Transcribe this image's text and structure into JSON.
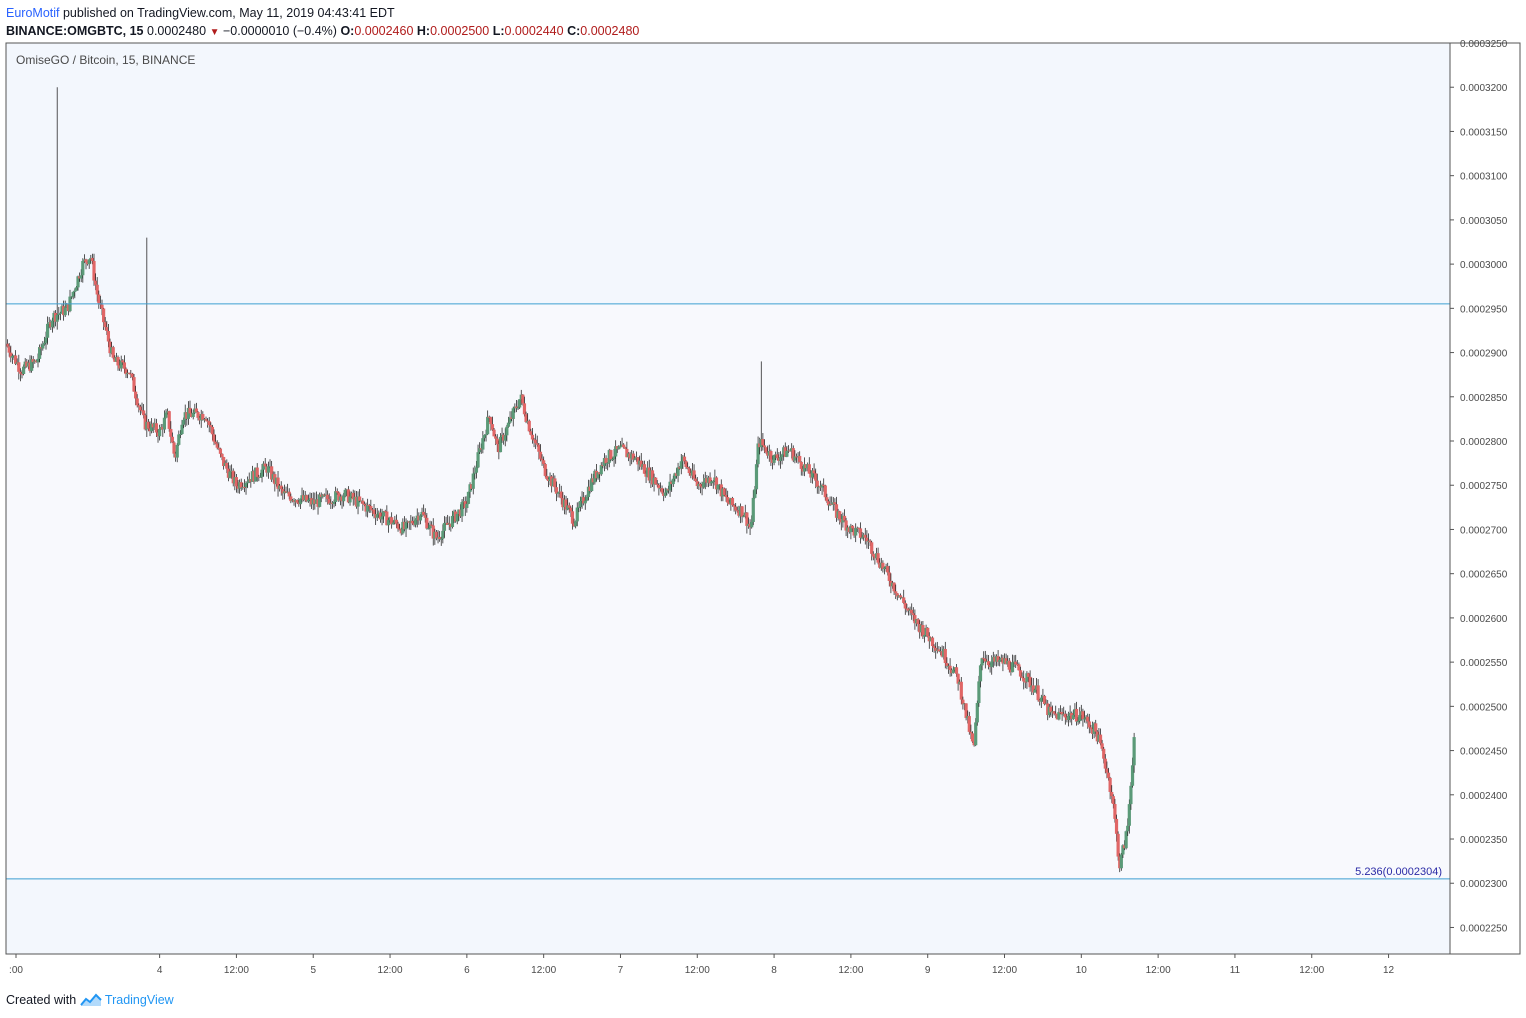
{
  "header": {
    "author": "EuroMotif",
    "published_text": " published on TradingView.com, May 11, 2019 04:43:41 EDT",
    "symbol_text": "BINANCE:OMGBTC, 15",
    "last_price": "0.0002480",
    "change": "−0.0000010 (−0.4%)",
    "open_label": "O:",
    "open": "0.0002460",
    "high_label": "H:",
    "high": "0.0002500",
    "low_label": "L:",
    "low": "0.0002440",
    "close_label": "C:",
    "close": "0.0002480",
    "down_arrow": "▼"
  },
  "footer": {
    "created_with": "Created with",
    "brand": "TradingView"
  },
  "colors": {
    "up": "#5b9a78",
    "down": "#e06666",
    "zone_fill": "#f3f7fd",
    "plot_bg": "#f8f9fd",
    "level_line": "#3d9fd1",
    "fib_text": "#2a2aa6",
    "axis_text": "#4a4a4a",
    "border": "#555555"
  },
  "chart_data": {
    "type": "candlestick",
    "title": "OmiseGO / Bitcoin, 15, BINANCE",
    "y_range": [
      0.000222,
      0.000325
    ],
    "y_ticks": [
      "0.0002250",
      "0.0002300",
      "0.0002350",
      "0.0002400",
      "0.0002450",
      "0.0002500",
      "0.0002550",
      "0.0002600",
      "0.0002650",
      "0.0002700",
      "0.0002750",
      "0.0002800",
      "0.0002850",
      "0.0002900",
      "0.0002950",
      "0.0003000",
      "0.0003050",
      "0.0003100",
      "0.0003150",
      "0.0003200",
      "0.0003250"
    ],
    "x_labels": [
      ":00",
      "4",
      "12:00",
      "5",
      "12:00",
      "6",
      "12:00",
      "7",
      "12:00",
      "8",
      "12:00",
      "9",
      "12:00",
      "10",
      "12:00",
      "11",
      "12:00",
      "12"
    ],
    "horizontal_levels": [
      0.0002955,
      0.0002305
    ],
    "fib_label": "5.236(0.0002304)",
    "price_path": [
      [
        3.0,
        0.000291
      ],
      [
        3.1,
        0.000288
      ],
      [
        3.2,
        0.000289
      ],
      [
        3.3,
        0.000294
      ],
      [
        3.4,
        0.000295
      ],
      [
        3.5,
        0.0003
      ],
      [
        3.55,
        0.000301
      ],
      [
        3.6,
        0.000296
      ],
      [
        3.7,
        0.000289
      ],
      [
        3.8,
        0.000288
      ],
      [
        3.9,
        0.000282
      ],
      [
        4.0,
        0.000281
      ],
      [
        4.05,
        0.000283
      ],
      [
        4.1,
        0.000278
      ],
      [
        4.15,
        0.000283
      ],
      [
        4.3,
        0.000283
      ],
      [
        4.4,
        0.000278
      ],
      [
        4.5,
        0.000275
      ],
      [
        4.6,
        0.000276
      ],
      [
        4.7,
        0.000277
      ],
      [
        4.8,
        0.000274
      ],
      [
        5.0,
        0.000273
      ],
      [
        5.2,
        0.000274
      ],
      [
        5.4,
        0.000272
      ],
      [
        5.5,
        0.000271
      ],
      [
        5.6,
        0.00027
      ],
      [
        5.7,
        0.000272
      ],
      [
        5.8,
        0.000269
      ],
      [
        5.9,
        0.000271
      ],
      [
        6.0,
        0.000273
      ],
      [
        6.1,
        0.00028
      ],
      [
        6.15,
        0.000283
      ],
      [
        6.2,
        0.000279
      ],
      [
        6.3,
        0.000283
      ],
      [
        6.35,
        0.000285
      ],
      [
        6.4,
        0.000282
      ],
      [
        6.5,
        0.000277
      ],
      [
        6.6,
        0.000274
      ],
      [
        6.7,
        0.000271
      ],
      [
        6.8,
        0.000275
      ],
      [
        6.9,
        0.000278
      ],
      [
        7.0,
        0.000279
      ],
      [
        7.1,
        0.000278
      ],
      [
        7.2,
        0.000276
      ],
      [
        7.3,
        0.000274
      ],
      [
        7.4,
        0.000278
      ],
      [
        7.5,
        0.000275
      ],
      [
        7.6,
        0.000276
      ],
      [
        7.7,
        0.000273
      ],
      [
        7.8,
        0.000272
      ],
      [
        7.85,
        0.00027
      ],
      [
        7.9,
        0.00028
      ],
      [
        8.0,
        0.000278
      ],
      [
        8.1,
        0.000279
      ],
      [
        8.2,
        0.000277
      ],
      [
        8.3,
        0.000275
      ],
      [
        8.4,
        0.000272
      ],
      [
        8.5,
        0.00027
      ],
      [
        8.6,
        0.000269
      ],
      [
        8.7,
        0.000266
      ],
      [
        8.8,
        0.000263
      ],
      [
        8.9,
        0.00026
      ],
      [
        9.0,
        0.000258
      ],
      [
        9.1,
        0.000256
      ],
      [
        9.2,
        0.000253
      ],
      [
        9.3,
        0.000245
      ],
      [
        9.35,
        0.000256
      ],
      [
        9.4,
        0.000255
      ],
      [
        9.5,
        0.000255
      ],
      [
        9.6,
        0.000254
      ],
      [
        9.7,
        0.000252
      ],
      [
        9.8,
        0.000249
      ],
      [
        9.9,
        0.000249
      ],
      [
        10.0,
        0.000249
      ],
      [
        10.1,
        0.000247
      ],
      [
        10.15,
        0.000244
      ],
      [
        10.2,
        0.00024
      ],
      [
        10.25,
        0.000232
      ],
      [
        10.3,
        0.000236
      ],
      [
        10.35,
        0.000248
      ]
    ]
  }
}
